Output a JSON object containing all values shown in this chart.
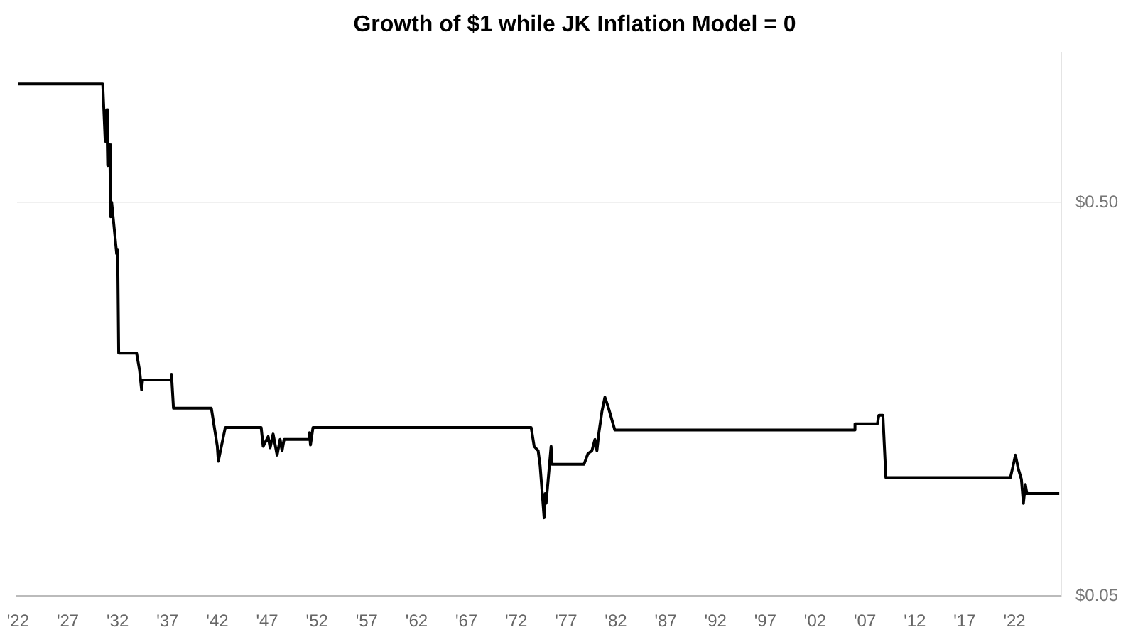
{
  "chart_data": {
    "type": "line",
    "title": "Growth of $1 while JK Inflation Model = 0",
    "x": [
      1922.0,
      1930.5,
      1930.75,
      1930.9,
      1931.0,
      1931.2,
      1931.3,
      1931.4,
      1931.9,
      1932.0,
      1932.1,
      1933.9,
      1934.2,
      1934.4,
      1934.5,
      1937.3,
      1937.4,
      1937.6,
      1941.4,
      1942.0,
      1942.1,
      1942.8,
      1946.4,
      1946.6,
      1947.1,
      1947.3,
      1947.6,
      1948.0,
      1948.3,
      1948.5,
      1948.7,
      1951.2,
      1951.25,
      1951.35,
      1951.6,
      1973.25,
      1973.5,
      1973.8,
      1974.2,
      1974.4,
      1974.8,
      1974.9,
      1975.0,
      1975.5,
      1975.6,
      1978.8,
      1979.2,
      1979.6,
      1979.9,
      1980.1,
      1980.3,
      1980.6,
      1980.9,
      1981.2,
      1981.3,
      1981.9,
      2005.9,
      2006.0,
      2008.25,
      2008.4,
      2008.8,
      2009.1,
      2021.6,
      2021.9,
      2022.1,
      2022.4,
      2022.7,
      2022.9,
      2023.1,
      2023.25,
      2026.5
    ],
    "series": [
      {
        "color": "#000000",
        "values": [
          1.0,
          1.0,
          0.715,
          0.86,
          0.62,
          0.7,
          0.46,
          0.5,
          0.37,
          0.38,
          0.207,
          0.207,
          0.187,
          0.167,
          0.177,
          0.177,
          0.183,
          0.15,
          0.15,
          0.12,
          0.11,
          0.134,
          0.134,
          0.12,
          0.127,
          0.119,
          0.129,
          0.114,
          0.125,
          0.117,
          0.125,
          0.125,
          0.13,
          0.121,
          0.134,
          0.134,
          0.134,
          0.12,
          0.117,
          0.107,
          0.079,
          0.091,
          0.086,
          0.12,
          0.108,
          0.108,
          0.115,
          0.117,
          0.125,
          0.117,
          0.13,
          0.147,
          0.16,
          0.152,
          0.149,
          0.132,
          0.132,
          0.137,
          0.137,
          0.144,
          0.144,
          0.1,
          0.1,
          0.108,
          0.114,
          0.105,
          0.099,
          0.086,
          0.096,
          0.091,
          0.091
        ]
      }
    ],
    "log": "y",
    "grid": "y",
    "legend": false,
    "marker": "none",
    "line_style": "solid",
    "xlim": [
      1921.9,
      2026.7
    ],
    "xticks": [
      {
        "value": 1922,
        "label": "'22"
      },
      {
        "value": 1927,
        "label": "'27"
      },
      {
        "value": 1932,
        "label": "'32"
      },
      {
        "value": 1937,
        "label": "'37"
      },
      {
        "value": 1942,
        "label": "'42"
      },
      {
        "value": 1947,
        "label": "'47"
      },
      {
        "value": 1952,
        "label": "'52"
      },
      {
        "value": 1957,
        "label": "'57"
      },
      {
        "value": 1962,
        "label": "'62"
      },
      {
        "value": 1967,
        "label": "'67"
      },
      {
        "value": 1972,
        "label": "'72"
      },
      {
        "value": 1977,
        "label": "'77"
      },
      {
        "value": 1982,
        "label": "'82"
      },
      {
        "value": 1987,
        "label": "'87"
      },
      {
        "value": 1992,
        "label": "'92"
      },
      {
        "value": 1997,
        "label": "'97"
      },
      {
        "value": 2002,
        "label": "'02"
      },
      {
        "value": 2007,
        "label": "'07"
      },
      {
        "value": 2012,
        "label": "'12"
      },
      {
        "value": 2017,
        "label": "'17"
      },
      {
        "value": 2022,
        "label": "'22"
      }
    ],
    "ylim": [
      0.05,
      1.2
    ],
    "yticks": [
      {
        "value": 0.05,
        "label": "$0.05"
      },
      {
        "value": 0.5,
        "label": "$0.50"
      }
    ]
  }
}
